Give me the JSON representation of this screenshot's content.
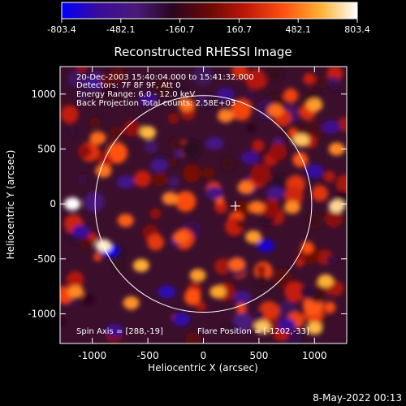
{
  "chart_data": {
    "type": "heatmap",
    "title": "Reconstructed RHESSI Image",
    "xlabel": "Heliocentric X (arcsec)",
    "ylabel": "Heliocentric Y (arcsec)",
    "xlim": [
      -1290,
      1290
    ],
    "ylim": [
      -1270,
      1250
    ],
    "xticks": [
      -1000,
      -500,
      0,
      500,
      1000
    ],
    "yticks": [
      1000,
      500,
      0,
      -500,
      -1000
    ],
    "xtick_labels": [
      "-1000",
      "-500",
      "0",
      "500",
      "1000"
    ],
    "ytick_labels": [
      "1000",
      "500",
      "0",
      "-500",
      "-1000"
    ],
    "colorbar": {
      "min": -803.4,
      "max": 803.4,
      "tick_values": [
        -803.4,
        -482.1,
        -160.7,
        160.7,
        482.1,
        803.4
      ],
      "tick_labels": [
        "-803.4",
        "-482.1",
        "-160.7",
        "160.7",
        "482.1",
        "803.4"
      ],
      "colors": [
        "#0000ff",
        "#3a0c9a",
        "#4a1a7a",
        "#2a0620",
        "#6a0a06",
        "#c01808",
        "#ff5010",
        "#ffb030",
        "#ffffff"
      ]
    },
    "solar_disk": {
      "center_x": 0,
      "center_y": 0,
      "radius": 975
    },
    "spin_axis_marker": {
      "x": 288,
      "y": -19
    },
    "annotations": [
      "20-Dec-2003 15:40:04.000 to 15:41:32.000",
      "Detectors: 7F 8F 9F, Att 0",
      "Energy Range: 6.0 - 12.0 keV",
      "Back Projection    Total counts: 2.58E+03"
    ],
    "footer_annotations": {
      "spin_axis": "Spin Axis = [288,-19]",
      "flare_position": "Flare Position = [-1202,-33]"
    },
    "bright_spots": [
      {
        "x": -1180,
        "y": 0,
        "value": 803.4
      },
      {
        "x": -900,
        "y": -380,
        "value": 750
      },
      {
        "x": 1200,
        "y": -20,
        "value": 700
      },
      {
        "x": 880,
        "y": 580,
        "value": 650
      },
      {
        "x": 1100,
        "y": -700,
        "value": 600
      },
      {
        "x": 530,
        "y": -1120,
        "value": 650
      },
      {
        "x": 1000,
        "y": -1130,
        "value": 620
      },
      {
        "x": -560,
        "y": -560,
        "value": 600
      },
      {
        "x": -500,
        "y": 650,
        "value": 620
      },
      {
        "x": 130,
        "y": -800,
        "value": 580
      },
      {
        "x": 450,
        "y": -300,
        "value": 560
      },
      {
        "x": -50,
        "y": -650,
        "value": 560
      },
      {
        "x": -300,
        "y": 50,
        "value": 500
      },
      {
        "x": 380,
        "y": 150,
        "value": 480
      },
      {
        "x": 480,
        "y": -30,
        "value": 470
      },
      {
        "x": -900,
        "y": 300,
        "value": 480
      },
      {
        "x": 1000,
        "y": 900,
        "value": 560
      },
      {
        "x": 800,
        "y": -30,
        "value": 520
      },
      {
        "x": -650,
        "y": -900,
        "value": 540
      },
      {
        "x": -1150,
        "y": -800,
        "value": 520
      },
      {
        "x": 200,
        "y": 800,
        "value": 500
      },
      {
        "x": -150,
        "y": 900,
        "value": 470
      },
      {
        "x": 650,
        "y": 850,
        "value": 460
      },
      {
        "x": -200,
        "y": -300,
        "value": 430
      },
      {
        "x": 1200,
        "y": 500,
        "value": 520
      },
      {
        "x": -950,
        "y": 600,
        "value": 460
      },
      {
        "x": 300,
        "y": -550,
        "value": 440
      },
      {
        "x": -700,
        "y": -150,
        "value": 430
      }
    ],
    "dark_spots": [
      {
        "x": -850,
        "y": -420,
        "value": -803.4
      },
      {
        "x": 560,
        "y": -380,
        "value": -700
      },
      {
        "x": -330,
        "y": -800,
        "value": -650
      },
      {
        "x": -200,
        "y": -1050,
        "value": -640
      },
      {
        "x": 1000,
        "y": 300,
        "value": -620
      },
      {
        "x": -1100,
        "y": -250,
        "value": -600
      },
      {
        "x": 420,
        "y": 420,
        "value": -560
      },
      {
        "x": 200,
        "y": 1000,
        "value": -560
      },
      {
        "x": 750,
        "y": -1100,
        "value": -600
      },
      {
        "x": -700,
        "y": 200,
        "value": -520
      },
      {
        "x": -500,
        "y": 950,
        "value": -540
      },
      {
        "x": -400,
        "y": 350,
        "value": -500
      },
      {
        "x": 100,
        "y": 100,
        "value": -460
      },
      {
        "x": 1150,
        "y": 700,
        "value": -540
      },
      {
        "x": -1000,
        "y": 1100,
        "value": -520
      },
      {
        "x": 350,
        "y": -850,
        "value": -500
      },
      {
        "x": 100,
        "y": 550,
        "value": -480
      },
      {
        "x": 650,
        "y": 100,
        "value": -480
      },
      {
        "x": -800,
        "y": -1150,
        "value": -540
      }
    ]
  },
  "timestamp": "8-May-2022 00:13"
}
